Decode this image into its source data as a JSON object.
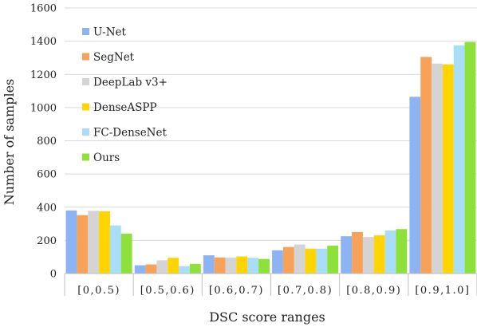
{
  "chart_data": {
    "type": "bar",
    "title": "",
    "xlabel": "DSC score ranges",
    "ylabel": "Number of samples",
    "ylim": [
      0,
      1600
    ],
    "yticks": [
      0,
      200,
      400,
      600,
      800,
      1000,
      1200,
      1400,
      1600
    ],
    "grid": true,
    "legend_position": "top-left",
    "categories": [
      "[0,0.5)",
      "[0.5,0.6)",
      "[0.6,0.7)",
      "[0.7,0.8)",
      "[0.8,0.9)",
      "[0.9,1.0]"
    ],
    "series": [
      {
        "name": "U-Net",
        "color": "#8CB4F4",
        "values": [
          380,
          50,
          110,
          140,
          225,
          1065
        ]
      },
      {
        "name": "SegNet",
        "color": "#F7A159",
        "values": [
          352,
          55,
          97,
          160,
          250,
          1305
        ]
      },
      {
        "name": "DeepLab v3+",
        "color": "#D4D4D4",
        "values": [
          378,
          80,
          97,
          175,
          220,
          1265
        ]
      },
      {
        "name": "DenseASPP",
        "color": "#FFD400",
        "values": [
          375,
          95,
          103,
          150,
          230,
          1260
        ]
      },
      {
        "name": "FC-DenseNet",
        "color": "#A9DEF8",
        "values": [
          290,
          45,
          95,
          150,
          260,
          1375
        ]
      },
      {
        "name": "Ours",
        "color": "#8EE03A",
        "values": [
          240,
          58,
          88,
          168,
          268,
          1395
        ]
      }
    ]
  }
}
